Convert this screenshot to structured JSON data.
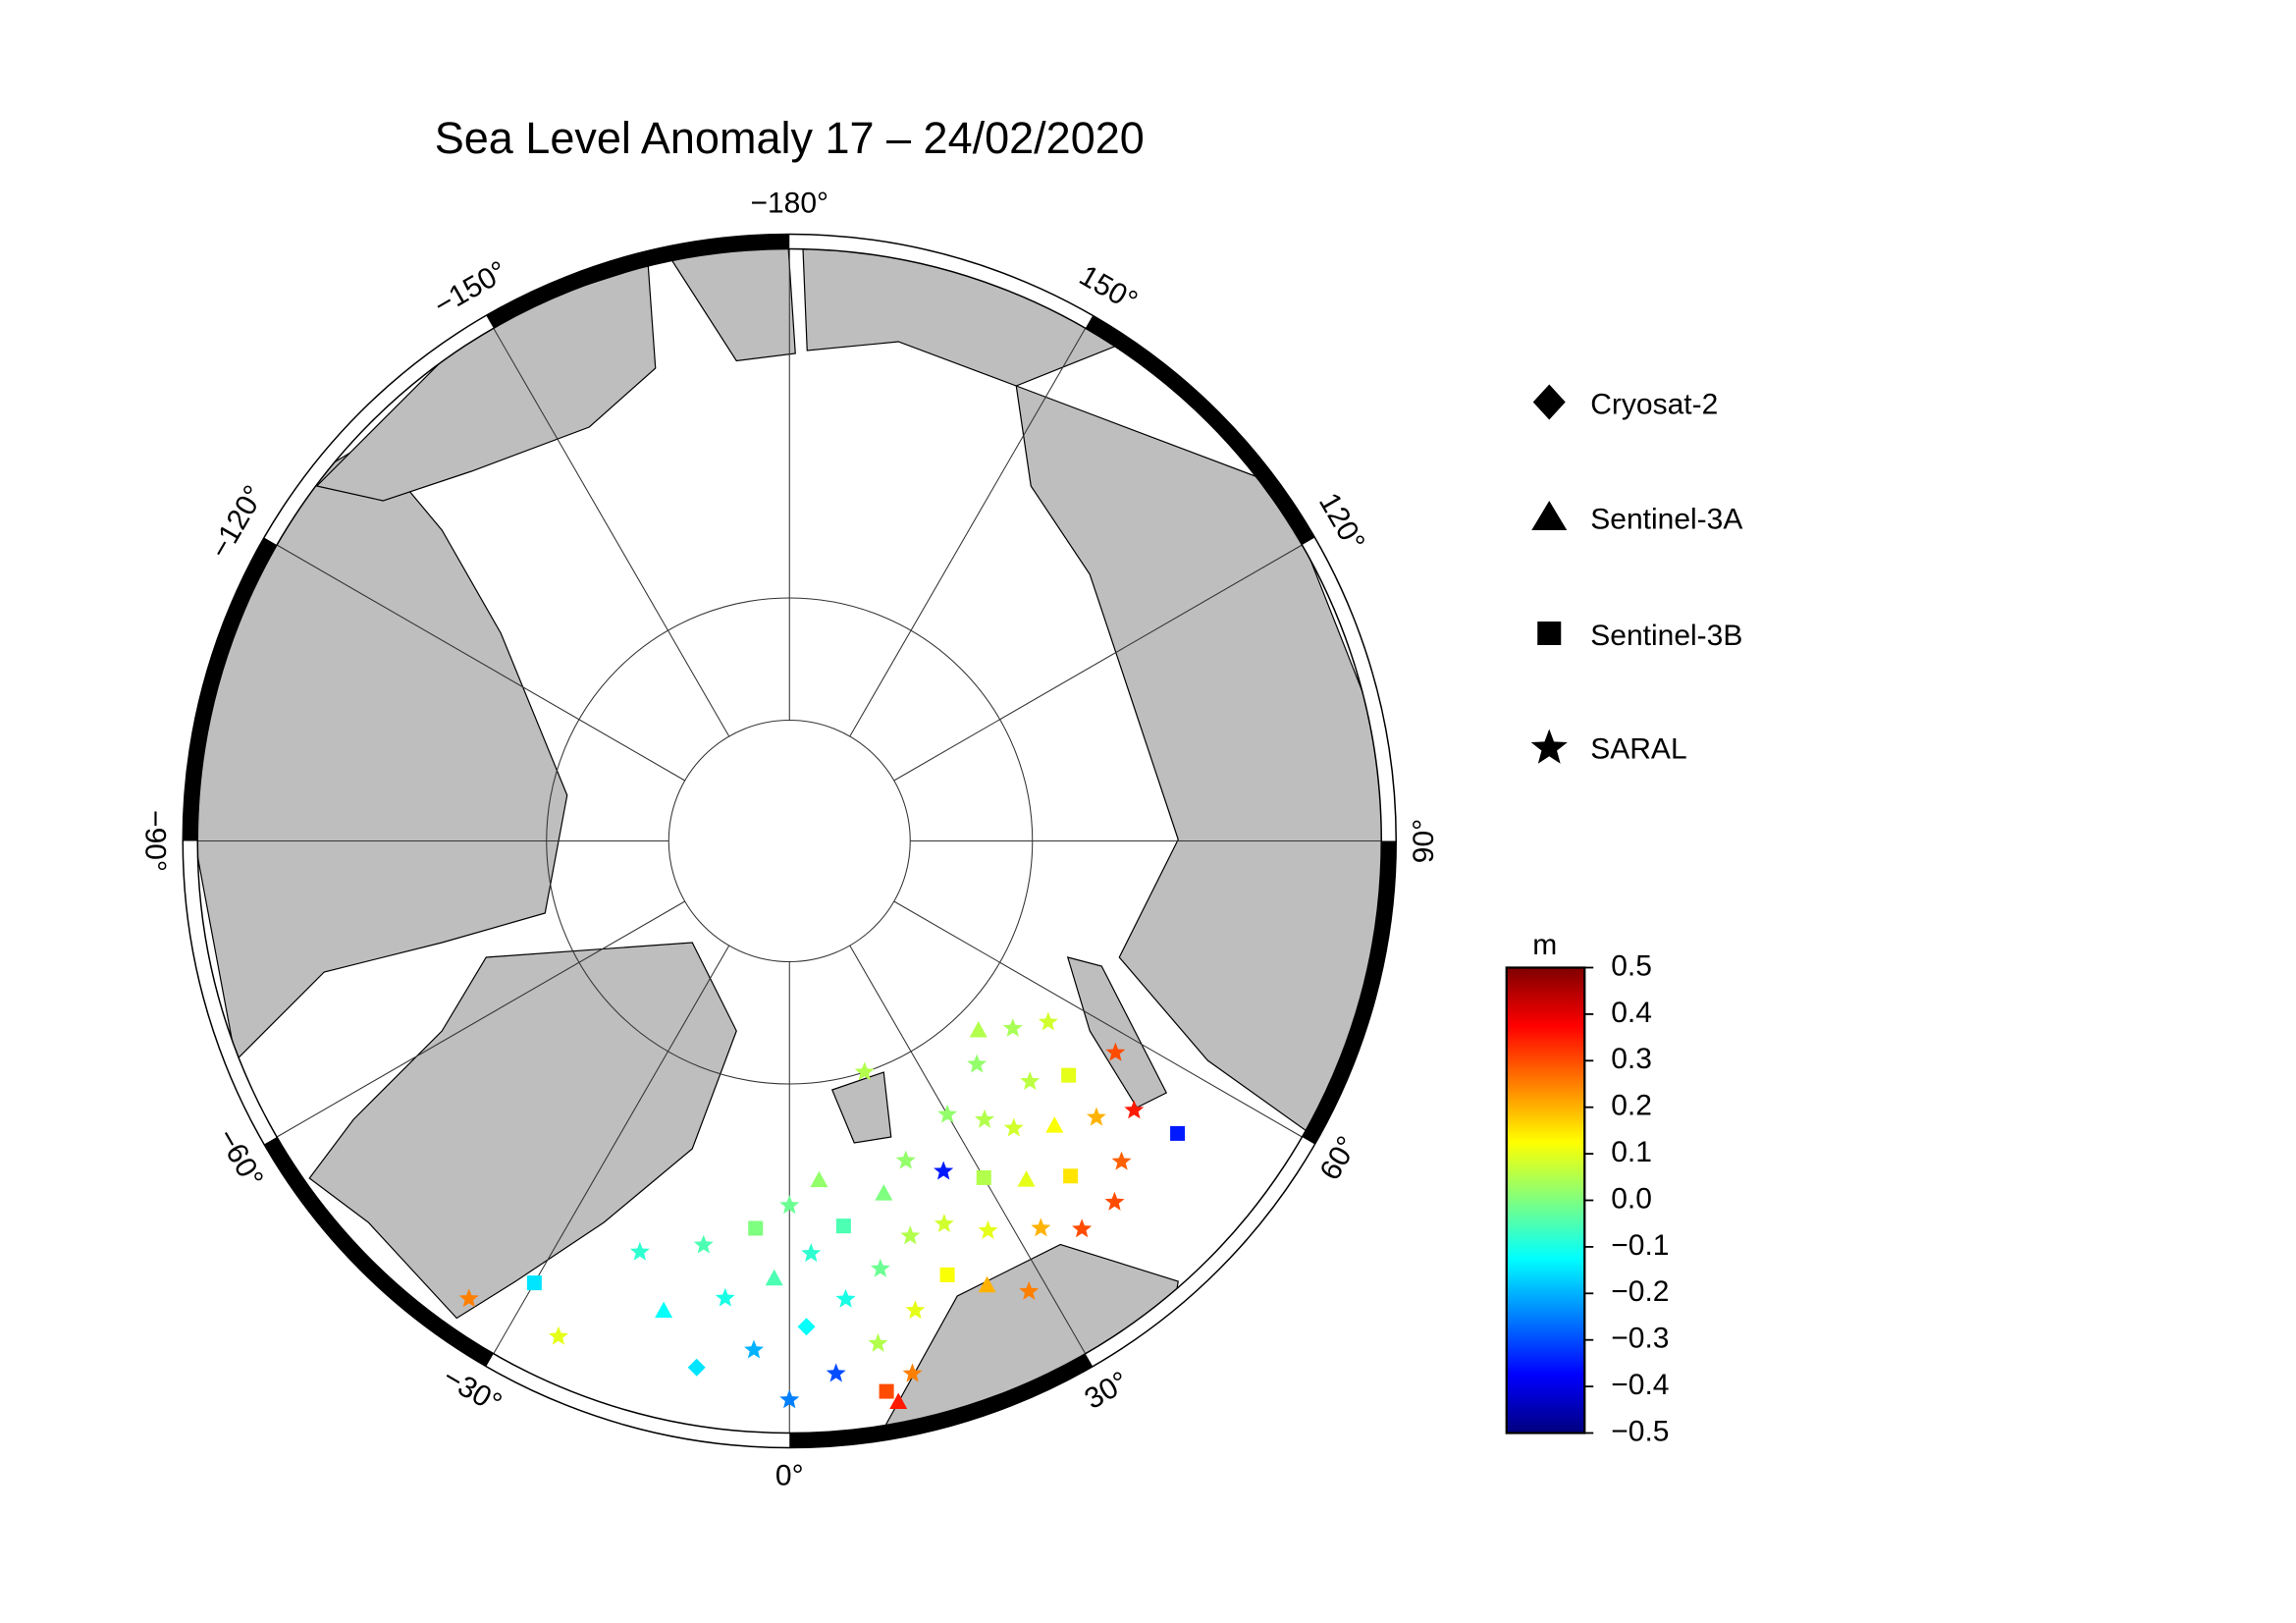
{
  "title": "Sea Level Anomaly 17 – 24/02/2020",
  "longitude_ticks": [
    {
      "value": -180,
      "label": "−180°"
    },
    {
      "value": -150,
      "label": "−150°"
    },
    {
      "value": -120,
      "label": "−120°"
    },
    {
      "value": -90,
      "label": "−90°"
    },
    {
      "value": -60,
      "label": "−60°"
    },
    {
      "value": -30,
      "label": "−30°"
    },
    {
      "value": 0,
      "label": "0°"
    },
    {
      "value": 30,
      "label": "30°"
    },
    {
      "value": 60,
      "label": "60°"
    },
    {
      "value": 90,
      "label": "90°"
    },
    {
      "value": 120,
      "label": "120°"
    },
    {
      "value": 150,
      "label": "150°"
    }
  ],
  "legend": [
    "Cryosat-2",
    "Sentinel-3A",
    "Sentinel-3B",
    "SARAL"
  ],
  "colorbar": {
    "unit": "m",
    "ylim": [
      -0.5,
      0.5
    ],
    "yticks": [
      0.5,
      0.4,
      0.3,
      0.2,
      0.1,
      {
        "value": 0,
        "label": "0.0"
      },
      {
        "value": -0.1,
        "label": "−0.1"
      },
      {
        "value": -0.2,
        "label": "−0.2"
      },
      {
        "value": -0.3,
        "label": "−0.3"
      },
      {
        "value": -0.4,
        "label": "−0.4"
      },
      {
        "value": -0.5,
        "label": "−0.5"
      }
    ],
    "colormap": [
      "#00007f",
      "#0000ff",
      "#007fff",
      "#00ffff",
      "#7fff7f",
      "#ffff00",
      "#ff7f00",
      "#ff0000",
      "#7f0000"
    ]
  },
  "observations": [
    [
      -20,
      72,
      -0.08,
      3
    ],
    [
      -15,
      70,
      -0.12,
      1
    ],
    [
      -12,
      73,
      -0.05,
      3
    ],
    [
      -10,
      68,
      -0.15,
      0
    ],
    [
      -8,
      71,
      -0.1,
      3
    ],
    [
      -5,
      74,
      0.0,
      2
    ],
    [
      -4,
      69,
      -0.2,
      3
    ],
    [
      -2,
      72,
      -0.05,
      1
    ],
    [
      0,
      67,
      -0.25,
      3
    ],
    [
      0,
      75,
      -0.02,
      3
    ],
    [
      2,
      70,
      -0.12,
      0
    ],
    [
      3,
      73,
      -0.08,
      3
    ],
    [
      5,
      68,
      -0.3,
      3
    ],
    [
      5,
      76,
      0.02,
      1
    ],
    [
      7,
      71,
      -0.1,
      3
    ],
    [
      8,
      74,
      -0.05,
      2
    ],
    [
      10,
      67,
      0.3,
      2
    ],
    [
      10,
      69,
      0.05,
      3
    ],
    [
      11,
      66.5,
      0.35,
      1
    ],
    [
      12,
      72,
      -0.02,
      3
    ],
    [
      13,
      67.5,
      0.25,
      3
    ],
    [
      15,
      70,
      0.1,
      3
    ],
    [
      15,
      75,
      0.0,
      1
    ],
    [
      17,
      73,
      0.05,
      3
    ],
    [
      20,
      71,
      0.12,
      2
    ],
    [
      20,
      76,
      0.02,
      3
    ],
    [
      22,
      73,
      0.08,
      3
    ],
    [
      24,
      70,
      0.2,
      1
    ],
    [
      25,
      75,
      -0.35,
      3
    ],
    [
      27,
      72,
      0.1,
      3
    ],
    [
      28,
      69,
      0.25,
      3
    ],
    [
      30,
      74,
      0.05,
      2
    ],
    [
      30,
      77,
      0.02,
      3
    ],
    [
      33,
      71,
      0.2,
      3
    ],
    [
      35,
      73,
      0.1,
      1
    ],
    [
      35,
      76,
      0.05,
      3
    ],
    [
      37,
      70,
      0.3,
      3
    ],
    [
      38,
      75,
      0.08,
      3
    ],
    [
      40,
      72,
      0.15,
      2
    ],
    [
      40,
      78,
      0.02,
      3
    ],
    [
      42,
      70,
      0.3,
      3
    ],
    [
      43,
      74,
      0.12,
      1
    ],
    [
      45,
      76,
      0.06,
      3
    ],
    [
      46,
      71,
      0.28,
      3
    ],
    [
      48,
      73,
      0.2,
      3
    ],
    [
      50,
      75,
      0.1,
      2
    ],
    [
      50,
      78,
      0.04,
      3
    ],
    [
      52,
      72,
      0.35,
      3
    ],
    [
      53,
      70,
      -0.35,
      2
    ],
    [
      55,
      77,
      0.08,
      3
    ],
    [
      -30,
      69,
      -0.15,
      2
    ],
    [
      -35,
      67,
      0.25,
      3
    ],
    [
      -25,
      67.5,
      0.1,
      3
    ],
    [
      18,
      80,
      0.05,
      3
    ],
    [
      45,
      79,
      0.05,
      1
    ],
    [
      57,
      74,
      0.3,
      3
    ]
  ]
}
